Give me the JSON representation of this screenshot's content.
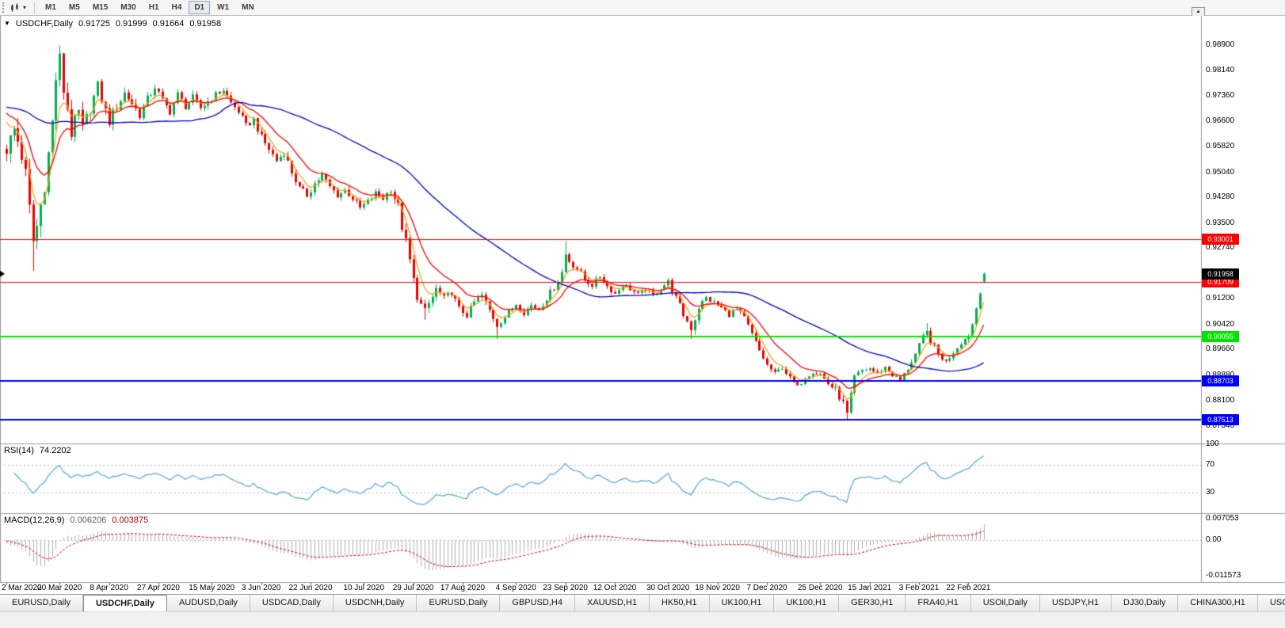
{
  "toolbar": {
    "timeframes": [
      "M1",
      "M5",
      "M15",
      "M30",
      "H1",
      "H4",
      "D1",
      "W1",
      "MN"
    ],
    "active_timeframe": "D1",
    "dropdown_glyph": "▾",
    "corner_glyph": "▲"
  },
  "chart_header": {
    "collapse_glyph": "▼",
    "symbol": "USDCHF,Daily",
    "open": "0.91725",
    "high": "0.91999",
    "low": "0.91664",
    "close": "0.91958"
  },
  "price_axis": {
    "labels": [
      "0.98900",
      "0.98140",
      "0.97360",
      "0.96600",
      "0.95820",
      "0.95040",
      "0.94280",
      "0.93500",
      "0.92740",
      "0.91960",
      "0.91200",
      "0.90420",
      "0.89660",
      "0.88880",
      "0.88100",
      "0.87340"
    ]
  },
  "rsi_panel": {
    "label": "RSI(14)",
    "value": "74.2202",
    "axis_labels": [
      "100",
      "70",
      "30"
    ],
    "axis_values": [
      100,
      70,
      30
    ]
  },
  "macd_panel": {
    "label": "MACD(12,26,9)",
    "value_main": "0.006206",
    "value_signal": "0.003875",
    "axis_labels": [
      "0.007053",
      "0.00",
      "-0.011573"
    ],
    "axis_values": [
      0.007053,
      0,
      -0.011573
    ]
  },
  "tab_bar": {
    "active_index": 1,
    "tabs": [
      "EURUSD,Daily",
      "USDCHF,Daily",
      "AUDUSD,Daily",
      "USDCAD,Daily",
      "USDCNH,Daily",
      "EURUSD,Daily",
      "GBPUSD,H4",
      "XAUUSD,H1",
      "HK50,H1",
      "UK100,H1",
      "UK100,H1",
      "GER30,H1",
      "FRA40,H1",
      "USOil,Daily",
      "USDJPY,H1",
      "DJ30,Daily",
      "CHINA300,H1",
      "USOil,"
    ]
  },
  "chart_data": {
    "type": "candlestick",
    "symbol": "USDCHF",
    "timeframe": "Daily",
    "last_bar": {
      "open": 0.91725,
      "high": 0.91999,
      "low": 0.91664,
      "close": 0.91958
    },
    "prehistory_price": 0.9705,
    "y_axis": {
      "min": 0.868,
      "max": 0.998
    },
    "x_axis": {
      "bars_total": 258,
      "labels": [
        "2 Mar 2020",
        "20 Mar 2020",
        "8 Apr 2020",
        "27 Apr 2020",
        "15 May 2020",
        "3 Jun 2020",
        "22 Jun 2020",
        "10 Jul 2020",
        "29 Jul 2020",
        "17 Aug 2020",
        "4 Sep 2020",
        "23 Sep 2020",
        "12 Oct 2020",
        "30 Oct 2020",
        "18 Nov 2020",
        "7 Dec 2020",
        "25 Dec 2020",
        "15 Jan 2021",
        "3 Feb 2021",
        "22 Feb 2021"
      ],
      "bar_indices": [
        0,
        14,
        27,
        40,
        54,
        67,
        80,
        94,
        107,
        120,
        134,
        147,
        160,
        174,
        187,
        200,
        214,
        227,
        240,
        253
      ]
    },
    "price_path_anchors": [
      [
        0,
        0.9575
      ],
      [
        1,
        0.9605
      ],
      [
        2,
        0.9635
      ],
      [
        3,
        0.96
      ],
      [
        4,
        0.9555
      ],
      [
        5,
        0.9495
      ],
      [
        6,
        0.939
      ],
      [
        7,
        0.9295
      ],
      [
        8,
        0.934
      ],
      [
        9,
        0.9405
      ],
      [
        10,
        0.947
      ],
      [
        11,
        0.956
      ],
      [
        12,
        0.9655
      ],
      [
        13,
        0.979
      ],
      [
        14,
        0.9845
      ],
      [
        15,
        0.9755
      ],
      [
        16,
        0.97
      ],
      [
        17,
        0.9625
      ],
      [
        18,
        0.9655
      ],
      [
        19,
        0.9685
      ],
      [
        20,
        0.9635
      ],
      [
        22,
        0.97
      ],
      [
        24,
        0.9765
      ],
      [
        26,
        0.969
      ],
      [
        27,
        0.966
      ],
      [
        29,
        0.9705
      ],
      [
        31,
        0.9745
      ],
      [
        33,
        0.9715
      ],
      [
        35,
        0.968
      ],
      [
        37,
        0.9725
      ],
      [
        39,
        0.9765
      ],
      [
        41,
        0.972
      ],
      [
        43,
        0.969
      ],
      [
        45,
        0.974
      ],
      [
        47,
        0.9705
      ],
      [
        49,
        0.973
      ],
      [
        51,
        0.97
      ],
      [
        53,
        0.972
      ],
      [
        55,
        0.974
      ],
      [
        57,
        0.9755
      ],
      [
        59,
        0.9715
      ],
      [
        61,
        0.969
      ],
      [
        63,
        0.9645
      ],
      [
        65,
        0.9665
      ],
      [
        67,
        0.961
      ],
      [
        69,
        0.9575
      ],
      [
        71,
        0.954
      ],
      [
        73,
        0.9565
      ],
      [
        75,
        0.9505
      ],
      [
        77,
        0.9455
      ],
      [
        79,
        0.9435
      ],
      [
        81,
        0.947
      ],
      [
        83,
        0.9495
      ],
      [
        85,
        0.946
      ],
      [
        87,
        0.9435
      ],
      [
        89,
        0.945
      ],
      [
        91,
        0.9425
      ],
      [
        93,
        0.9395
      ],
      [
        95,
        0.9415
      ],
      [
        97,
        0.944
      ],
      [
        99,
        0.9425
      ],
      [
        101,
        0.9455
      ],
      [
        103,
        0.94
      ],
      [
        104,
        0.934
      ],
      [
        105,
        0.929
      ],
      [
        106,
        0.9235
      ],
      [
        107,
        0.9175
      ],
      [
        108,
        0.913
      ],
      [
        109,
        0.91
      ],
      [
        110,
        0.908
      ],
      [
        111,
        0.9105
      ],
      [
        112,
        0.9125
      ],
      [
        113,
        0.915
      ],
      [
        115,
        0.912
      ],
      [
        117,
        0.914
      ],
      [
        119,
        0.909
      ],
      [
        121,
        0.907
      ],
      [
        123,
        0.911
      ],
      [
        125,
        0.913
      ],
      [
        127,
        0.9085
      ],
      [
        129,
        0.904
      ],
      [
        131,
        0.9065
      ],
      [
        133,
        0.909
      ],
      [
        134,
        0.9105
      ],
      [
        136,
        0.9078
      ],
      [
        138,
        0.91
      ],
      [
        140,
        0.9088
      ],
      [
        142,
        0.9122
      ],
      [
        144,
        0.9155
      ],
      [
        146,
        0.92
      ],
      [
        147,
        0.9255
      ],
      [
        148,
        0.9235
      ],
      [
        150,
        0.9212
      ],
      [
        152,
        0.9178
      ],
      [
        154,
        0.9162
      ],
      [
        156,
        0.9188
      ],
      [
        158,
        0.9158
      ],
      [
        160,
        0.9135
      ],
      [
        162,
        0.9162
      ],
      [
        164,
        0.915
      ],
      [
        166,
        0.9132
      ],
      [
        168,
        0.9148
      ],
      [
        170,
        0.9128
      ],
      [
        172,
        0.9152
      ],
      [
        174,
        0.9172
      ],
      [
        176,
        0.9122
      ],
      [
        178,
        0.9072
      ],
      [
        180,
        0.9032
      ],
      [
        181,
        0.906
      ],
      [
        182,
        0.9095
      ],
      [
        184,
        0.9122
      ],
      [
        186,
        0.9108
      ],
      [
        188,
        0.9092
      ],
      [
        190,
        0.9072
      ],
      [
        192,
        0.9088
      ],
      [
        194,
        0.9062
      ],
      [
        196,
        0.9012
      ],
      [
        198,
        0.8962
      ],
      [
        200,
        0.8918
      ],
      [
        202,
        0.8892
      ],
      [
        204,
        0.8912
      ],
      [
        206,
        0.8878
      ],
      [
        208,
        0.8852
      ],
      [
        210,
        0.8882
      ],
      [
        212,
        0.8898
      ],
      [
        214,
        0.8892
      ],
      [
        216,
        0.8862
      ],
      [
        218,
        0.8842
      ],
      [
        220,
        0.8802
      ],
      [
        221,
        0.8768
      ],
      [
        222,
        0.8825
      ],
      [
        223,
        0.8882
      ],
      [
        225,
        0.8902
      ],
      [
        227,
        0.8908
      ],
      [
        229,
        0.8892
      ],
      [
        231,
        0.8912
      ],
      [
        233,
        0.8888
      ],
      [
        235,
        0.8872
      ],
      [
        237,
        0.8908
      ],
      [
        239,
        0.8952
      ],
      [
        241,
        0.9002
      ],
      [
        242,
        0.9018
      ],
      [
        243,
        0.8992
      ],
      [
        245,
        0.8952
      ],
      [
        247,
        0.8928
      ],
      [
        249,
        0.8958
      ],
      [
        251,
        0.8988
      ],
      [
        253,
        0.9008
      ],
      [
        254,
        0.9042
      ],
      [
        255,
        0.9092
      ],
      [
        256,
        0.9145
      ],
      [
        257,
        0.9196
      ]
    ],
    "volatility_anchors": [
      [
        0,
        0.005
      ],
      [
        6,
        0.007
      ],
      [
        10,
        0.006
      ],
      [
        14,
        0.0065
      ],
      [
        18,
        0.005
      ],
      [
        24,
        0.004
      ],
      [
        30,
        0.0034
      ],
      [
        40,
        0.0028
      ],
      [
        50,
        0.0024
      ],
      [
        60,
        0.0022
      ],
      [
        70,
        0.0024
      ],
      [
        80,
        0.0024
      ],
      [
        90,
        0.002
      ],
      [
        100,
        0.0022
      ],
      [
        104,
        0.0038
      ],
      [
        108,
        0.0034
      ],
      [
        112,
        0.0026
      ],
      [
        120,
        0.002
      ],
      [
        130,
        0.002
      ],
      [
        140,
        0.0018
      ],
      [
        147,
        0.0026
      ],
      [
        155,
        0.0017
      ],
      [
        165,
        0.0016
      ],
      [
        174,
        0.0018
      ],
      [
        180,
        0.003
      ],
      [
        186,
        0.0017
      ],
      [
        196,
        0.0019
      ],
      [
        205,
        0.0016
      ],
      [
        214,
        0.0016
      ],
      [
        220,
        0.0026
      ],
      [
        225,
        0.0015
      ],
      [
        235,
        0.0015
      ],
      [
        241,
        0.002
      ],
      [
        247,
        0.0016
      ],
      [
        253,
        0.0018
      ],
      [
        257,
        0.0022
      ]
    ],
    "wick_overrides": {
      "highs": [
        [
          14,
          0.989
        ],
        [
          147,
          0.9296
        ],
        [
          242,
          0.9046
        ]
      ],
      "lows": [
        [
          7,
          0.9205
        ],
        [
          110,
          0.9056
        ],
        [
          129,
          0.8998
        ],
        [
          180,
          0.8998
        ],
        [
          221,
          0.8752
        ]
      ]
    },
    "levels": [
      {
        "price": 0.93001,
        "label": "0.93001",
        "color": "#ff0000",
        "width": 1,
        "text_color": "#ffffff"
      },
      {
        "price": 0.91709,
        "label": "0.91709",
        "color": "#ff0000",
        "width": 1,
        "text_color": "#ffffff"
      },
      {
        "price": 0.90055,
        "label": "0.90055",
        "color": "#00e400",
        "width": 2,
        "text_color": "#ffffff"
      },
      {
        "price": 0.88703,
        "label": "0.88703",
        "color": "#0000ff",
        "width": 2,
        "text_color": "#ffffff"
      },
      {
        "price": 0.87513,
        "label": "0.87513",
        "color": "#0000ff",
        "width": 2,
        "text_color": "#ffffff"
      }
    ],
    "current_price": {
      "value": 0.91958,
      "label": "0.91958",
      "badge_bg": "#000000",
      "badge_fg": "#ffffff"
    },
    "indicators": {
      "moving_averages": [
        {
          "name": "ma-fast",
          "period": 5,
          "method": "ema",
          "color": "#f2a71b"
        },
        {
          "name": "ma-mid",
          "period": 13,
          "method": "ema",
          "color": "#ff0000"
        },
        {
          "name": "ma-slow",
          "period": 50,
          "method": "sma",
          "color": "#0000c8"
        }
      ],
      "rsi": {
        "label": "RSI(14)",
        "period": 14,
        "value": 74.2202,
        "color": "#4fa8dc",
        "levels": [
          100,
          70,
          30
        ]
      },
      "macd": {
        "label": "MACD(12,26,9)",
        "fast": 12,
        "slow": 26,
        "signal": 9,
        "value_main": 0.006206,
        "value_signal": 0.003875,
        "hist_color": "#b0b0b0",
        "signal_color": "#e00000",
        "range": [
          -0.0135,
          0.0085
        ]
      }
    },
    "style": {
      "up_color": "#00b050",
      "down_color": "#ee0000",
      "background": "#ffffff"
    }
  }
}
